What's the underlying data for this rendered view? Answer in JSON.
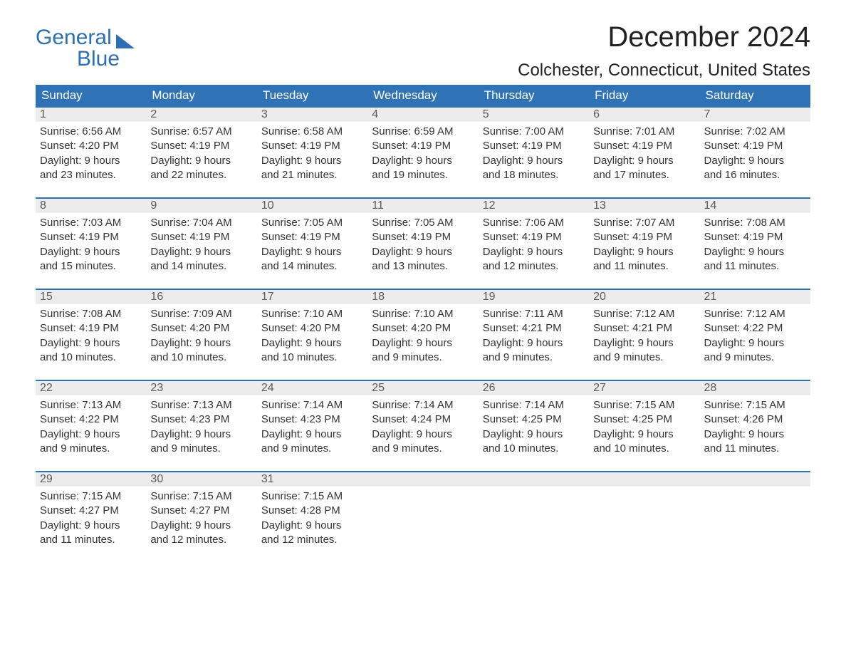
{
  "logo": {
    "line1": "General",
    "line2": "Blue"
  },
  "title": "December 2024",
  "location": "Colchester, Connecticut, United States",
  "colors": {
    "brand_blue": "#2f73b6",
    "header_gray": "#ececec",
    "text": "#333333",
    "background": "#ffffff"
  },
  "layout": {
    "columns": 7,
    "rows": 5
  },
  "dow": [
    "Sunday",
    "Monday",
    "Tuesday",
    "Wednesday",
    "Thursday",
    "Friday",
    "Saturday"
  ],
  "labels": {
    "sunrise": "Sunrise:",
    "sunset": "Sunset:",
    "daylight": "Daylight:"
  },
  "weeks": [
    [
      {
        "n": "1",
        "sunrise": "6:56 AM",
        "sunset": "4:20 PM",
        "dl1": "9 hours",
        "dl2": "and 23 minutes."
      },
      {
        "n": "2",
        "sunrise": "6:57 AM",
        "sunset": "4:19 PM",
        "dl1": "9 hours",
        "dl2": "and 22 minutes."
      },
      {
        "n": "3",
        "sunrise": "6:58 AM",
        "sunset": "4:19 PM",
        "dl1": "9 hours",
        "dl2": "and 21 minutes."
      },
      {
        "n": "4",
        "sunrise": "6:59 AM",
        "sunset": "4:19 PM",
        "dl1": "9 hours",
        "dl2": "and 19 minutes."
      },
      {
        "n": "5",
        "sunrise": "7:00 AM",
        "sunset": "4:19 PM",
        "dl1": "9 hours",
        "dl2": "and 18 minutes."
      },
      {
        "n": "6",
        "sunrise": "7:01 AM",
        "sunset": "4:19 PM",
        "dl1": "9 hours",
        "dl2": "and 17 minutes."
      },
      {
        "n": "7",
        "sunrise": "7:02 AM",
        "sunset": "4:19 PM",
        "dl1": "9 hours",
        "dl2": "and 16 minutes."
      }
    ],
    [
      {
        "n": "8",
        "sunrise": "7:03 AM",
        "sunset": "4:19 PM",
        "dl1": "9 hours",
        "dl2": "and 15 minutes."
      },
      {
        "n": "9",
        "sunrise": "7:04 AM",
        "sunset": "4:19 PM",
        "dl1": "9 hours",
        "dl2": "and 14 minutes."
      },
      {
        "n": "10",
        "sunrise": "7:05 AM",
        "sunset": "4:19 PM",
        "dl1": "9 hours",
        "dl2": "and 14 minutes."
      },
      {
        "n": "11",
        "sunrise": "7:05 AM",
        "sunset": "4:19 PM",
        "dl1": "9 hours",
        "dl2": "and 13 minutes."
      },
      {
        "n": "12",
        "sunrise": "7:06 AM",
        "sunset": "4:19 PM",
        "dl1": "9 hours",
        "dl2": "and 12 minutes."
      },
      {
        "n": "13",
        "sunrise": "7:07 AM",
        "sunset": "4:19 PM",
        "dl1": "9 hours",
        "dl2": "and 11 minutes."
      },
      {
        "n": "14",
        "sunrise": "7:08 AM",
        "sunset": "4:19 PM",
        "dl1": "9 hours",
        "dl2": "and 11 minutes."
      }
    ],
    [
      {
        "n": "15",
        "sunrise": "7:08 AM",
        "sunset": "4:19 PM",
        "dl1": "9 hours",
        "dl2": "and 10 minutes."
      },
      {
        "n": "16",
        "sunrise": "7:09 AM",
        "sunset": "4:20 PM",
        "dl1": "9 hours",
        "dl2": "and 10 minutes."
      },
      {
        "n": "17",
        "sunrise": "7:10 AM",
        "sunset": "4:20 PM",
        "dl1": "9 hours",
        "dl2": "and 10 minutes."
      },
      {
        "n": "18",
        "sunrise": "7:10 AM",
        "sunset": "4:20 PM",
        "dl1": "9 hours",
        "dl2": "and 9 minutes."
      },
      {
        "n": "19",
        "sunrise": "7:11 AM",
        "sunset": "4:21 PM",
        "dl1": "9 hours",
        "dl2": "and 9 minutes."
      },
      {
        "n": "20",
        "sunrise": "7:12 AM",
        "sunset": "4:21 PM",
        "dl1": "9 hours",
        "dl2": "and 9 minutes."
      },
      {
        "n": "21",
        "sunrise": "7:12 AM",
        "sunset": "4:22 PM",
        "dl1": "9 hours",
        "dl2": "and 9 minutes."
      }
    ],
    [
      {
        "n": "22",
        "sunrise": "7:13 AM",
        "sunset": "4:22 PM",
        "dl1": "9 hours",
        "dl2": "and 9 minutes."
      },
      {
        "n": "23",
        "sunrise": "7:13 AM",
        "sunset": "4:23 PM",
        "dl1": "9 hours",
        "dl2": "and 9 minutes."
      },
      {
        "n": "24",
        "sunrise": "7:14 AM",
        "sunset": "4:23 PM",
        "dl1": "9 hours",
        "dl2": "and 9 minutes."
      },
      {
        "n": "25",
        "sunrise": "7:14 AM",
        "sunset": "4:24 PM",
        "dl1": "9 hours",
        "dl2": "and 9 minutes."
      },
      {
        "n": "26",
        "sunrise": "7:14 AM",
        "sunset": "4:25 PM",
        "dl1": "9 hours",
        "dl2": "and 10 minutes."
      },
      {
        "n": "27",
        "sunrise": "7:15 AM",
        "sunset": "4:25 PM",
        "dl1": "9 hours",
        "dl2": "and 10 minutes."
      },
      {
        "n": "28",
        "sunrise": "7:15 AM",
        "sunset": "4:26 PM",
        "dl1": "9 hours",
        "dl2": "and 11 minutes."
      }
    ],
    [
      {
        "n": "29",
        "sunrise": "7:15 AM",
        "sunset": "4:27 PM",
        "dl1": "9 hours",
        "dl2": "and 11 minutes."
      },
      {
        "n": "30",
        "sunrise": "7:15 AM",
        "sunset": "4:27 PM",
        "dl1": "9 hours",
        "dl2": "and 12 minutes."
      },
      {
        "n": "31",
        "sunrise": "7:15 AM",
        "sunset": "4:28 PM",
        "dl1": "9 hours",
        "dl2": "and 12 minutes."
      },
      {
        "empty": true
      },
      {
        "empty": true
      },
      {
        "empty": true
      },
      {
        "empty": true
      }
    ]
  ]
}
